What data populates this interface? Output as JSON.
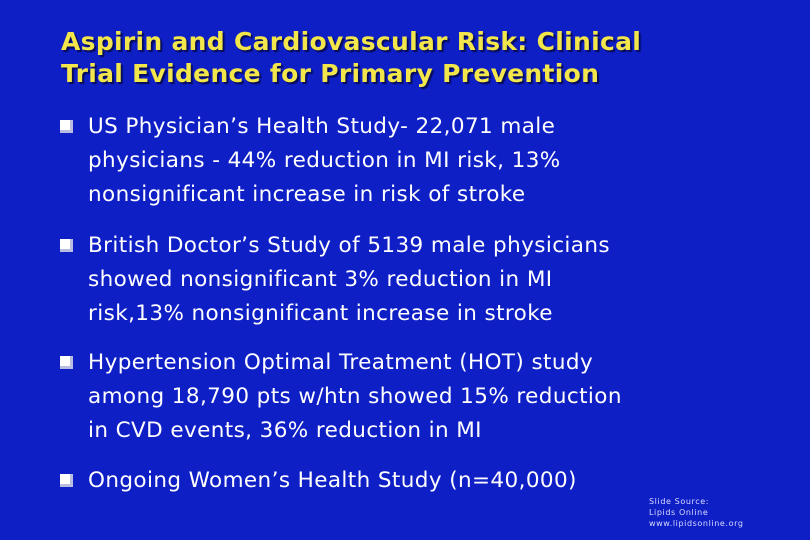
{
  "slide": {
    "title_line_1": "Aspirin and Cardiovascular Risk: Clinical",
    "title_line_2": "Trial Evidence for Primary Prevention",
    "bullets": [
      {
        "lines": [
          "US Physician’s Health Study- 22,071 male",
          "physicians - 44% reduction in MI risk, 13%",
          "nonsignificant increase in risk of stroke"
        ]
      },
      {
        "lines": [
          "British Doctor’s Study of 5139 male physicians",
          "showed nonsignificant 3% reduction in MI",
          "risk,13% nonsignificant increase in stroke"
        ]
      },
      {
        "lines": [
          "Hypertension Optimal Treatment (HOT) study",
          "among 18,790 pts w/htn showed 15% reduction",
          "in CVD events, 36% reduction in MI"
        ]
      },
      {
        "lines": [
          "Ongoing Women’s Health Study (n=40,000)"
        ]
      }
    ],
    "source": {
      "line_1": "Slide Source:",
      "line_2": "Lipids Online",
      "line_3": "www.lipidsonline.org"
    }
  },
  "colors": {
    "background": "#0f1fc6",
    "title": "#f2e64a",
    "text": "#ffffff"
  },
  "icons": {
    "bullet_marker": "square-bullet-icon"
  }
}
